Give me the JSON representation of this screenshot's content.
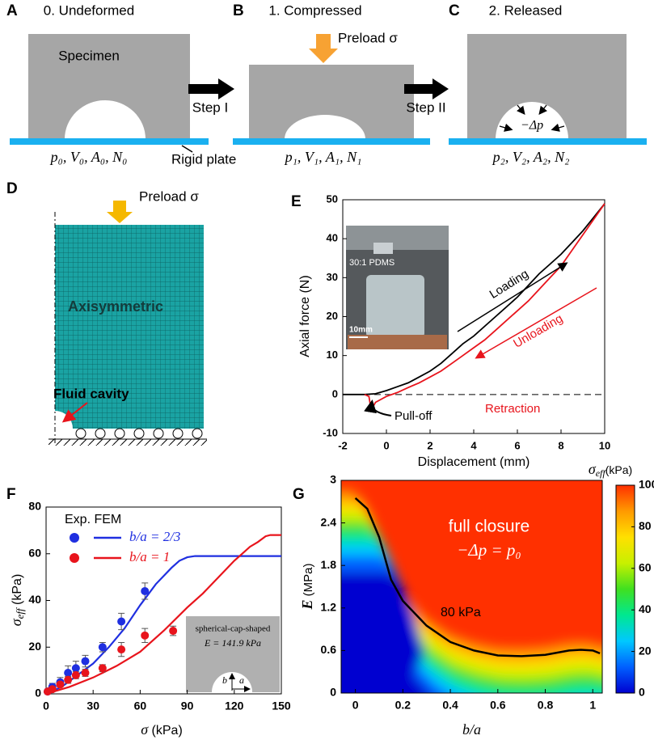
{
  "panels": {
    "A": {
      "label": "A",
      "title": "0. Undeformed",
      "specimen": "Specimen",
      "state": "p₀, V₀, A₀, N₀",
      "plate": "Rigid plate"
    },
    "B": {
      "label": "B",
      "title": "1. Compressed",
      "load": "Preload σ",
      "state": "p₁, V₁, A₁, N₁"
    },
    "C": {
      "label": "C",
      "title": "2. Released",
      "pressure": "−Δp",
      "state": "p₂, V₂, A₂, N₂"
    },
    "D": {
      "label": "D",
      "load": "Preload σ",
      "mesh": "Axisymmetric",
      "cavity": "Fluid cavity"
    }
  },
  "steps": [
    "Step I",
    "Step II"
  ],
  "chart_data": [
    {
      "type": "line",
      "label": "E",
      "xlabel": "Displacement (mm)",
      "ylabel": "Axial force (N)",
      "xlim": [
        -2,
        10
      ],
      "xticks": [
        -2,
        0,
        2,
        4,
        6,
        8,
        10
      ],
      "ylim": [
        -10,
        50
      ],
      "yticks": [
        -10,
        0,
        10,
        20,
        30,
        40,
        50
      ],
      "hline": 0,
      "series": [
        {
          "name": "Loading",
          "color": "#000000",
          "x": [
            -2,
            -1.5,
            -1,
            -0.5,
            0,
            0.5,
            1,
            1.5,
            2,
            2.5,
            3,
            3.5,
            4,
            4.5,
            5,
            5.5,
            6,
            6.5,
            7,
            7.5,
            8,
            8.5,
            9,
            9.5,
            10
          ],
          "values": [
            0,
            0,
            0,
            0.2,
            1,
            2,
            3,
            4.5,
            6,
            8,
            10.5,
            13,
            15,
            17.5,
            20,
            22.5,
            25,
            28,
            31,
            33.5,
            36,
            39,
            42,
            45.5,
            49
          ]
        },
        {
          "name": "Unloading",
          "color": "#e8141c",
          "x": [
            10,
            9.5,
            9,
            8.5,
            8,
            7.5,
            7,
            6.5,
            6,
            5.5,
            5,
            4.5,
            4,
            3.5,
            3,
            2.5,
            2,
            1.5,
            1,
            0.5,
            0,
            -0.5,
            -0.7,
            -0.8,
            -1
          ],
          "values": [
            49,
            45,
            41,
            37,
            33,
            30,
            27,
            24,
            21.5,
            19,
            16.5,
            14,
            12,
            10,
            8,
            6,
            4.5,
            3,
            1.8,
            0.5,
            -0.5,
            -2,
            -4,
            -0.5,
            0
          ]
        }
      ],
      "annotations": {
        "pull_off": "Pull-off",
        "retraction": "Retraction"
      },
      "inset": {
        "material": "30:1 PDMS",
        "scale": "10mm"
      }
    },
    {
      "type": "scatter-line",
      "label": "F",
      "xlabel": {
        "symbol": "σ",
        "unit": " (kPa)"
      },
      "ylabel": {
        "symbol": "σ",
        "subscript": "eff",
        "unit": " (kPa)"
      },
      "xlim": [
        0,
        150
      ],
      "xticks": [
        0,
        30,
        60,
        90,
        120,
        150
      ],
      "ylim": [
        0,
        80
      ],
      "yticks": [
        0,
        20,
        40,
        60,
        80
      ],
      "legend_title": "Exp. FEM",
      "series": [
        {
          "name": "b/a = 2/3",
          "color": "#1f2fe0",
          "exp": {
            "x": [
              1,
              4,
              9,
              14,
              19,
              25,
              36,
              48,
              63
            ],
            "values": [
              1,
              3,
              5,
              9,
              11,
              14,
              20,
              31,
              44
            ],
            "errors": [
              0.5,
              1.5,
              2,
              3,
              3,
              2.5,
              2,
              3.5,
              3.5
            ]
          },
          "fem": {
            "x": [
              0,
              10,
              20,
              30,
              40,
              50,
              60,
              70,
              80,
              85,
              90,
              95,
              100,
              150
            ],
            "values": [
              0,
              3,
              8,
              13,
              20,
              28,
              38,
              47,
              54,
              57,
              58.5,
              59,
              59,
              59
            ]
          }
        },
        {
          "name": "b/a = 1",
          "color": "#e8141c",
          "exp": {
            "x": [
              1,
              4,
              9,
              14,
              19,
              25,
              36,
              48,
              63,
              81
            ],
            "values": [
              1,
              2,
              4,
              6,
              8,
              9,
              11,
              19,
              25,
              27
            ],
            "errors": [
              0.5,
              1,
              1,
              1.5,
              1.5,
              1.5,
              1.5,
              3,
              3,
              2
            ]
          },
          "fem": {
            "x": [
              0,
              15,
              30,
              45,
              60,
              75,
              90,
              100,
              110,
              120,
              125,
              130,
              135,
              140,
              143,
              150
            ],
            "values": [
              0,
              3,
              7,
              12,
              18,
              27,
              37,
              43,
              50,
              57,
              60,
              63,
              65,
              67.5,
              68,
              68
            ]
          }
        }
      ],
      "inset": {
        "title": "spherical-cap-shaped",
        "modulus": "E = 141.9 kPa",
        "height": "b",
        "width": "a"
      }
    },
    {
      "type": "heatmap",
      "label": "G",
      "xlabel": "b/a",
      "ylabel": {
        "symbol": "E",
        "unit": " (MPa)"
      },
      "xlim": [
        -0.06,
        1.04
      ],
      "xticks": [
        0,
        0.2,
        0.4,
        0.6,
        0.8,
        1
      ],
      "ylim": [
        0,
        3
      ],
      "yticks": [
        0,
        0.6,
        1.2,
        1.8,
        2.4,
        3
      ],
      "annotations": {
        "region": "full closure",
        "condition": "−Δp = p₀"
      },
      "contour": {
        "label": "80 kPa",
        "x": [
          0,
          0.05,
          0.1,
          0.15,
          0.2,
          0.3,
          0.4,
          0.5,
          0.6,
          0.7,
          0.8,
          0.9,
          0.95,
          1,
          1.03
        ],
        "values": [
          2.75,
          2.6,
          2.2,
          1.6,
          1.3,
          0.95,
          0.72,
          0.6,
          0.53,
          0.52,
          0.54,
          0.6,
          0.61,
          0.6,
          0.56
        ]
      },
      "colorbar": {
        "label": {
          "symbol": "σ",
          "subscript": "eff",
          "unit": "(kPa)"
        },
        "lim": [
          0,
          100
        ],
        "ticks": [
          0,
          20,
          40,
          60,
          80,
          100
        ],
        "colors": [
          "#0000d0",
          "#0060ff",
          "#00c8ff",
          "#00e890",
          "#40e020",
          "#c8f000",
          "#ffe000",
          "#ff9a00",
          "#ff3000"
        ]
      }
    }
  ]
}
